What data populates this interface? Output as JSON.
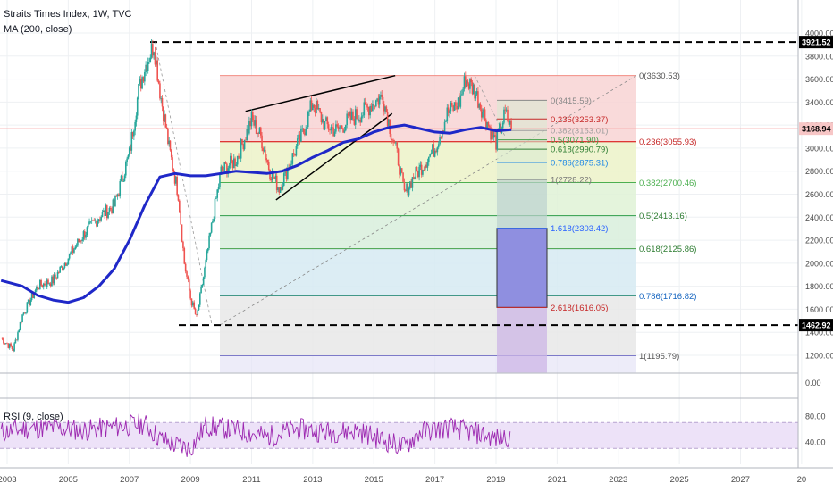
{
  "header": {
    "title": "Straits Times Index, 1W, TVC",
    "ma_label": "MA (200, close)",
    "rsi_label": "RSI (9, close)"
  },
  "colors": {
    "candle_up": "#26a69a",
    "candle_down": "#ef5350",
    "ma_line": "#1f28c8",
    "rsi_line": "#9c27b0",
    "rsi_band": "#ede2f8",
    "last_price_line": "#f7a7a7",
    "fib_red_zone": "#f6d6d6",
    "fib_green_line": "#4caf50",
    "fib_blue_label": "#2962ff",
    "dashed_extreme": "#000000"
  },
  "price_axis": {
    "ticks": [
      "4000.00",
      "3800.00",
      "3600.00",
      "3400.00",
      "3200.00",
      "3000.00",
      "2800.00",
      "2600.00",
      "2400.00",
      "2200.00",
      "2000.00",
      "1800.00",
      "1600.00",
      "1400.00",
      "1200.00"
    ],
    "zero_tick": "0.00",
    "rsi_ticks": [
      "80.00",
      "40.00"
    ],
    "badges": {
      "high": "3921.52",
      "last": "3168.94",
      "low": "1462.92"
    }
  },
  "time_axis": {
    "labels": [
      "2003",
      "2005",
      "2007",
      "2009",
      "2011",
      "2013",
      "2015",
      "2017",
      "2019",
      "2021",
      "2023",
      "2025",
      "2027",
      "20"
    ]
  },
  "fib_large": {
    "levels": [
      {
        "label": "0(3630.53)",
        "value": 3630.53
      },
      {
        "label": "0.236(3055.93)",
        "value": 3055.93
      },
      {
        "label": "0.382(2700.46)",
        "value": 2700.46
      },
      {
        "label": "0.5(2413.16)",
        "value": 2413.16
      },
      {
        "label": "0.618(2125.86)",
        "value": 2125.86
      },
      {
        "label": "0.786(1716.82)",
        "value": 1716.82
      },
      {
        "label": "1(1195.79)",
        "value": 1195.79
      }
    ]
  },
  "fib_small": {
    "levels": [
      {
        "label": "0(3415.59)",
        "value": 3415.59
      },
      {
        "label": "0.236(3253.37)",
        "value": 3253.37
      },
      {
        "label": "0.382(3153.01)",
        "value": 3153.01
      },
      {
        "label": "0.5(3071.90)",
        "value": 3071.9
      },
      {
        "label": "0.618(2990.79)",
        "value": 2990.79
      },
      {
        "label": "0.786(2875.31)",
        "value": 2875.31
      },
      {
        "label": "1(2728.22)",
        "value": 2728.22
      },
      {
        "label": "1.618(2303.42)",
        "value": 2303.42
      },
      {
        "label": "2.618(1616.05)",
        "value": 1616.05
      }
    ]
  },
  "chart_data": {
    "type": "line",
    "title": "Straits Times Index, 1W, TVC",
    "xlabel": "",
    "ylabel": "",
    "ylim": [
      1050,
      4080
    ],
    "xlim": [
      2003.0,
      2030.0
    ],
    "log_scale": false,
    "grid": true,
    "series": [
      {
        "name": "Straits Times Index",
        "x": [
          2002.8,
          2003.2,
          2003.5,
          2004.0,
          2004.5,
          2005.0,
          2005.5,
          2006.0,
          2006.5,
          2007.0,
          2007.3,
          2007.5,
          2007.8,
          2008.0,
          2008.3,
          2008.6,
          2008.8,
          2009.0,
          2009.2,
          2009.5,
          2009.8,
          2010.0,
          2010.5,
          2011.0,
          2011.3,
          2011.6,
          2011.9,
          2012.3,
          2012.7,
          2013.0,
          2013.4,
          2013.8,
          2014.2,
          2014.6,
          2015.0,
          2015.3,
          2015.6,
          2015.8,
          2016.0,
          2016.3,
          2016.6,
          2017.0,
          2017.4,
          2017.8,
          2018.0,
          2018.3,
          2018.6,
          2018.9,
          2019.0,
          2019.3,
          2019.5
        ],
        "y": [
          1350,
          1250,
          1550,
          1800,
          1850,
          2050,
          2250,
          2400,
          2500,
          2950,
          3500,
          3700,
          3900,
          3500,
          3000,
          2600,
          2000,
          1700,
          1520,
          2000,
          2500,
          2800,
          2900,
          3250,
          3100,
          2800,
          2650,
          2900,
          3150,
          3400,
          3200,
          3150,
          3250,
          3300,
          3400,
          3450,
          3100,
          2900,
          2600,
          2750,
          2850,
          3000,
          3300,
          3400,
          3600,
          3500,
          3300,
          3100,
          3050,
          3300,
          3170
        ]
      },
      {
        "name": "MA (200, close)",
        "x": [
          2002.8,
          2003.5,
          2004.0,
          2004.5,
          2005.0,
          2005.5,
          2006.0,
          2006.5,
          2007.0,
          2007.5,
          2008.0,
          2008.5,
          2009.0,
          2009.5,
          2010.0,
          2010.5,
          2011.0,
          2011.5,
          2012.0,
          2012.5,
          2013.0,
          2013.5,
          2014.0,
          2014.5,
          2015.0,
          2015.5,
          2016.0,
          2016.5,
          2017.0,
          2017.5,
          2018.0,
          2018.5,
          2019.0,
          2019.5
        ],
        "y": [
          1850,
          1800,
          1720,
          1680,
          1660,
          1700,
          1800,
          1950,
          2200,
          2500,
          2750,
          2780,
          2760,
          2760,
          2780,
          2800,
          2790,
          2780,
          2800,
          2850,
          2920,
          2980,
          3050,
          3080,
          3140,
          3180,
          3200,
          3170,
          3140,
          3130,
          3160,
          3180,
          3150,
          3160
        ]
      },
      {
        "name": "RSI (9, close)",
        "x": [
          2002.8,
          2003.5,
          2004.5,
          2005.5,
          2006.5,
          2007.5,
          2008.0,
          2008.5,
          2009.0,
          2009.5,
          2010.5,
          2011.5,
          2012.5,
          2013.5,
          2014.5,
          2015.5,
          2016.0,
          2016.5,
          2017.5,
          2018.5,
          2019.0,
          2019.5
        ],
        "y": [
          55,
          60,
          62,
          58,
          63,
          68,
          45,
          35,
          30,
          65,
          58,
          48,
          60,
          55,
          57,
          40,
          32,
          55,
          62,
          52,
          45,
          50
        ]
      }
    ],
    "annotations": [
      "3921.52 high marker",
      "1462.92 low marker",
      "3168.94 last price"
    ]
  }
}
